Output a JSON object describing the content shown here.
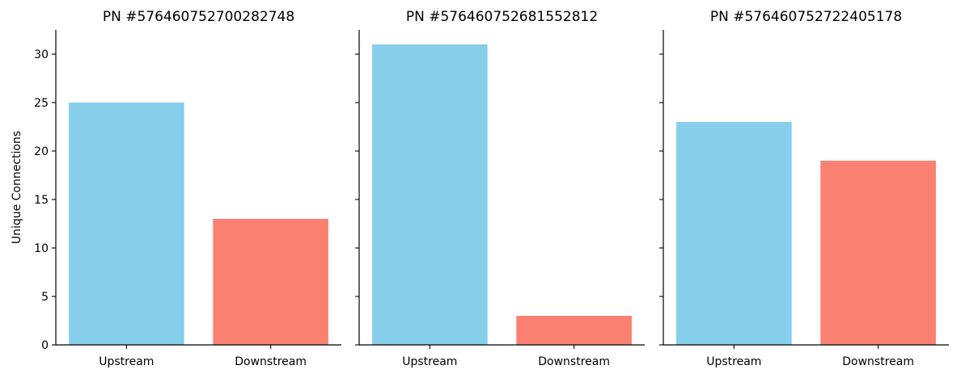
{
  "chart_data": {
    "type": "bar",
    "ylabel": "Unique Connections",
    "ylim": [
      0,
      32.5
    ],
    "yticks": [
      0,
      5,
      10,
      15,
      20,
      25,
      30
    ],
    "categories": [
      "Upstream",
      "Downstream"
    ],
    "colors": {
      "Upstream": "#87CEEB",
      "Downstream": "#FA8072"
    },
    "shared_y": true,
    "grid": false,
    "panels": [
      {
        "title": "PN #576460752700282748",
        "values": [
          25,
          13
        ]
      },
      {
        "title": "PN #576460752681552812",
        "values": [
          31,
          3
        ]
      },
      {
        "title": "PN #576460752722405178",
        "values": [
          23,
          19
        ]
      }
    ]
  }
}
